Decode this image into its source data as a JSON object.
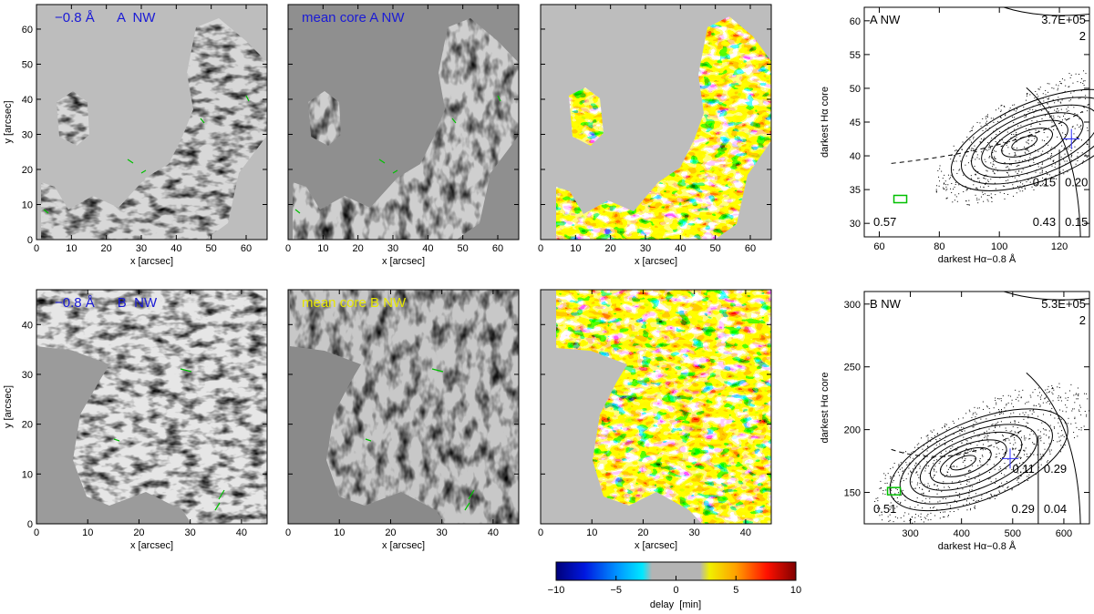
{
  "colors": {
    "title_blue": "#1a1ad6",
    "title_yellow": "#e6e600",
    "contour": "#000000",
    "marker_blue": "#3030ff",
    "marker_green": "#00c000"
  },
  "panels": [
    {
      "id": "A-wing",
      "row": "A",
      "title": "−0.8 Å      A  NW",
      "title_color": "#1a1ad6",
      "kind": "gray"
    },
    {
      "id": "A-core",
      "row": "A",
      "title": "mean core  A  NW",
      "title_color": "#1a1ad6",
      "kind": "gray"
    },
    {
      "id": "A-delay",
      "row": "A",
      "title": "",
      "kind": "delay"
    },
    {
      "id": "B-wing",
      "row": "B",
      "title": "−0.8 Å      B  NW",
      "title_color": "#1a1ad6",
      "kind": "gray"
    },
    {
      "id": "B-core",
      "row": "B",
      "title": "mean core  B  NW",
      "title_color": "#e6e600",
      "kind": "gray"
    },
    {
      "id": "B-delay",
      "row": "B",
      "title": "",
      "kind": "delay"
    }
  ],
  "map_axes": {
    "A": {
      "xlabel": "x  [arcsec]",
      "ylabel": "y  [arcsec]",
      "xlim": [
        0,
        66
      ],
      "ylim": [
        0,
        67
      ],
      "xticks": [
        "0",
        "10",
        "20",
        "30",
        "40",
        "50",
        "60"
      ],
      "yticks": [
        "0",
        "10",
        "20",
        "30",
        "40",
        "50",
        "60"
      ]
    },
    "B": {
      "xlabel": "x  [arcsec]",
      "ylabel": "y  [arcsec]",
      "xlim": [
        0,
        45
      ],
      "ylim": [
        0,
        47
      ],
      "xticks": [
        "0",
        "10",
        "20",
        "30",
        "40"
      ],
      "yticks": [
        "0",
        "10",
        "20",
        "30",
        "40"
      ]
    }
  },
  "colorbar": {
    "label": "delay  [min]",
    "ticks": [
      "−10",
      "−5",
      "0",
      "5",
      "10"
    ],
    "range": [
      -10,
      10
    ]
  },
  "chart_data": [
    {
      "type": "scatter",
      "panel_label": "A  NW",
      "count_label": "3.7E+05",
      "corner_number": "2",
      "xlabel": "darkest Hα−0.8 Å",
      "ylabel": "darkest Hα core",
      "xlim": [
        55,
        130
      ],
      "ylim": [
        28,
        62
      ],
      "xticks": [
        "60",
        "80",
        "100",
        "120"
      ],
      "yticks": [
        "30",
        "35",
        "40",
        "45",
        "50",
        "55",
        "60"
      ],
      "quadrant_fractions": {
        "lower_left": "0.57",
        "upper_mid": "0.15",
        "upper_right": "0.20",
        "lower_mid": "0.43",
        "lower_right": "0.15"
      },
      "threshold_x": 120,
      "blue_cross": [
        124,
        42.5
      ],
      "green_box": [
        67,
        33.6
      ]
    },
    {
      "type": "scatter",
      "panel_label": "B  NW",
      "count_label": "5.3E+05",
      "corner_number": "2",
      "xlabel": "darkest Hα−0.8 Å",
      "ylabel": "darkest Hα core",
      "xlim": [
        210,
        650
      ],
      "ylim": [
        125,
        310
      ],
      "xticks": [
        "300",
        "400",
        "500",
        "600"
      ],
      "yticks": [
        "150",
        "200",
        "250",
        "300"
      ],
      "quadrant_fractions": {
        "lower_left": "0.51",
        "upper_mid": "0.11",
        "upper_right": "0.29",
        "lower_mid": "0.29",
        "lower_right": "0.04"
      },
      "threshold_x": 550,
      "blue_cross": [
        495,
        177
      ],
      "green_box": [
        268,
        151
      ]
    }
  ]
}
